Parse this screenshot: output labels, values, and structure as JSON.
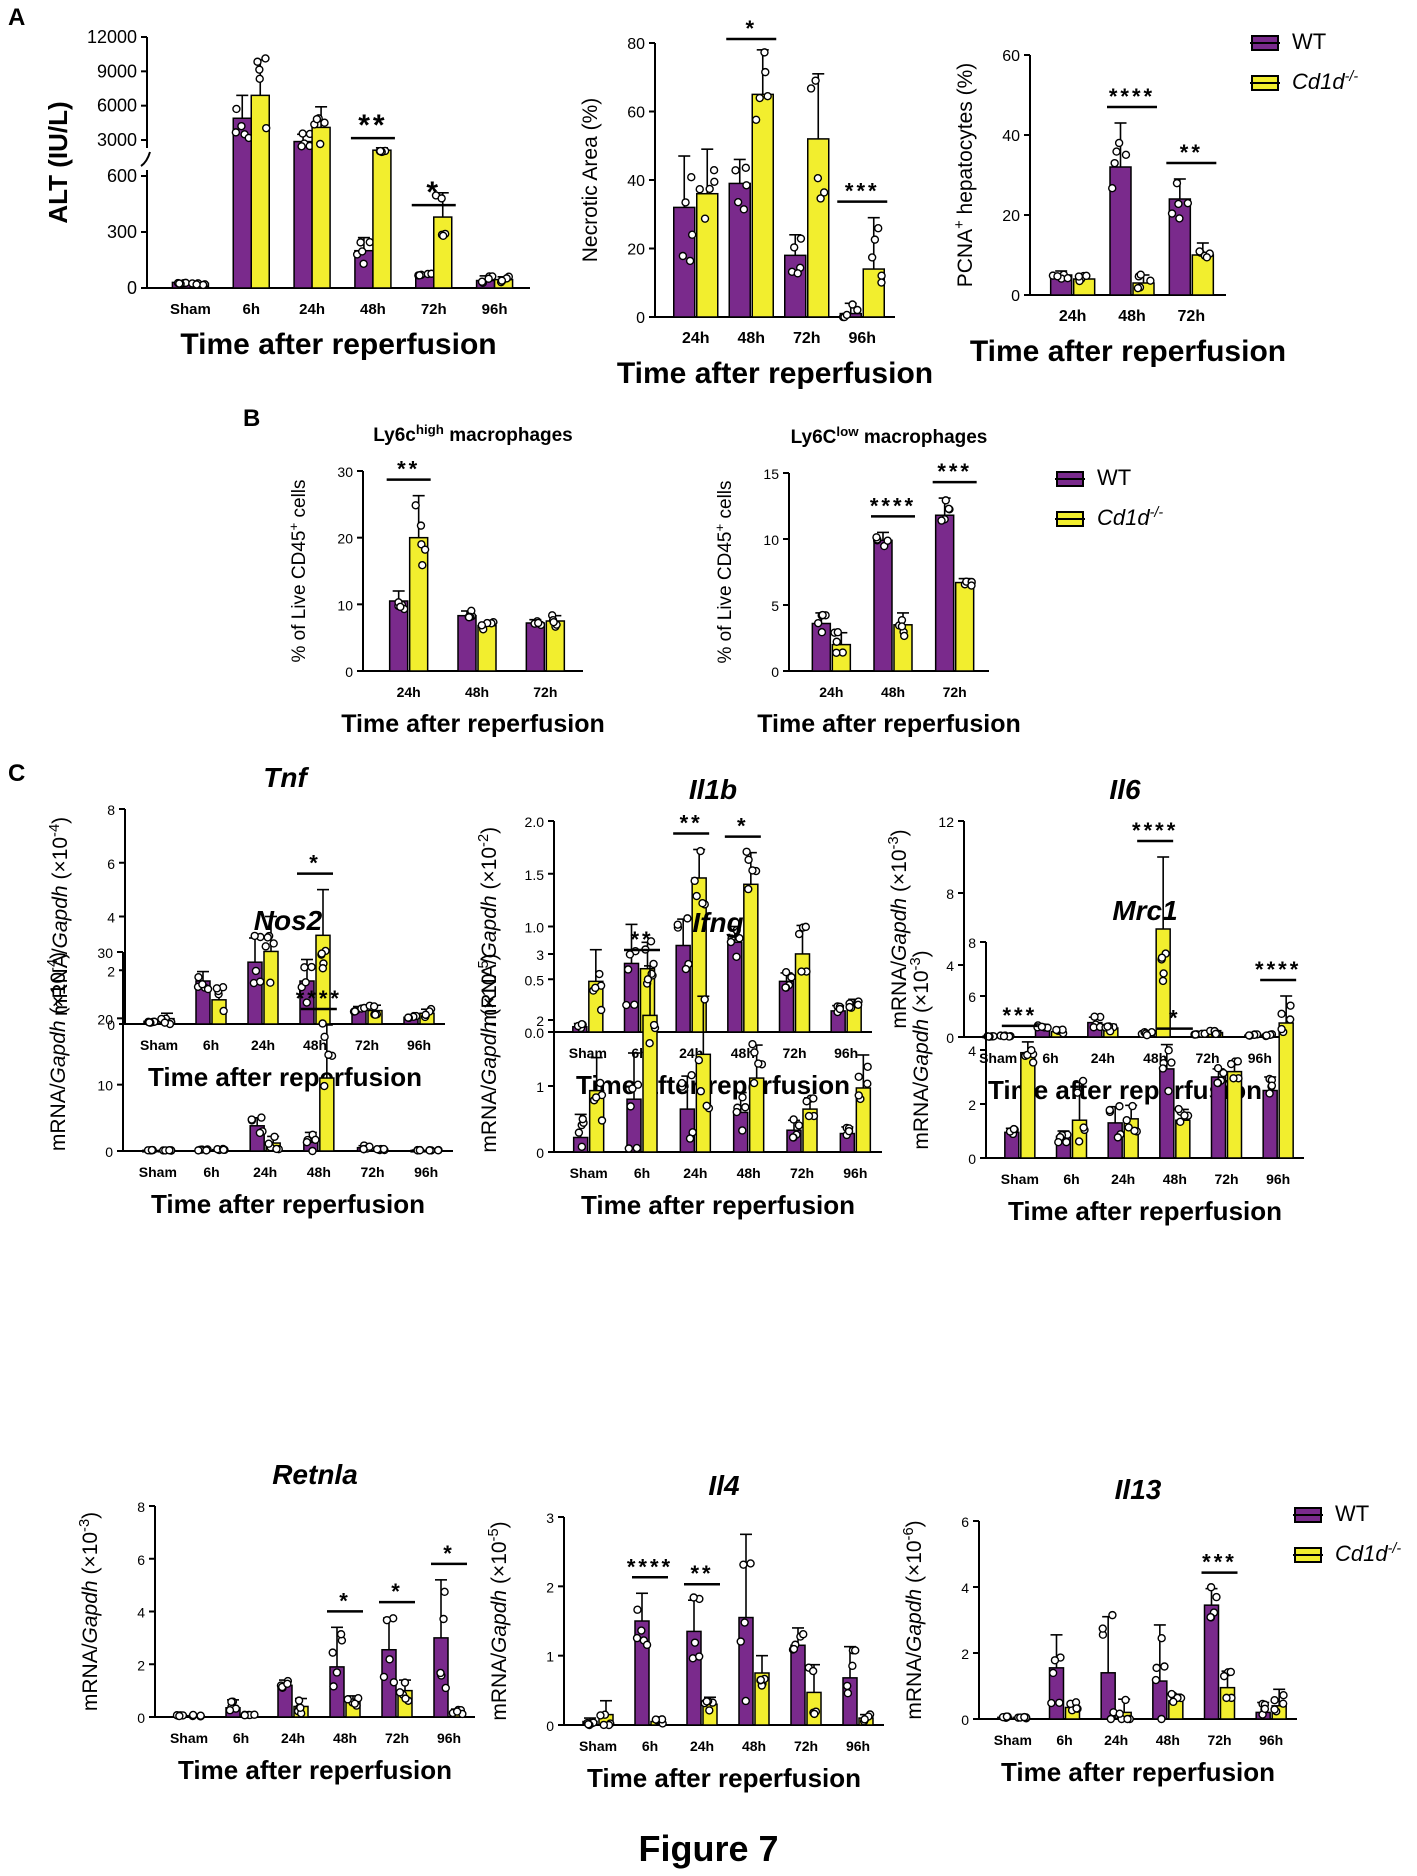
{
  "panel_labels": {
    "a": "A",
    "b": "B",
    "c": "C"
  },
  "figure_caption": "Figure 7",
  "legend": {
    "wt": "WT",
    "ko": "Cd1d",
    "ko_sup": "-/-"
  },
  "colors": {
    "wt": "#7a2a8c",
    "ko": "#f2ee2e",
    "edge": "#000000"
  },
  "chart_data": [
    {
      "id": "alt",
      "type": "bar",
      "title": "",
      "title_italic": false,
      "categories": [
        "Sham",
        "6h",
        "24h",
        "48h",
        "72h",
        "96h"
      ],
      "series": [
        {
          "name": "WT",
          "values": [
            30,
            4900,
            2800,
            200,
            70,
            40
          ],
          "errors": [
            8,
            2000,
            700,
            70,
            10,
            25
          ]
        },
        {
          "name": "Cd1d-/-",
          "values": [
            25,
            6900,
            4100,
            1700,
            380,
            45
          ],
          "errors": [
            8,
            3100,
            1800,
            300,
            130,
            15
          ]
        }
      ],
      "ylabel": "ALT (IU/L)",
      "xlabel": "Time after reperfusion",
      "axis_break": true,
      "lower_ticks": [
        "0",
        "300",
        "600"
      ],
      "upper_ticks": [
        "3000",
        "6000",
        "9000",
        "12000"
      ],
      "significance": [
        {
          "cat": 3,
          "label": "**"
        },
        {
          "cat": 4,
          "label": "*"
        }
      ]
    },
    {
      "id": "necrotic",
      "type": "bar",
      "title": "",
      "title_italic": false,
      "categories": [
        "24h",
        "48h",
        "72h",
        "96h"
      ],
      "series": [
        {
          "name": "WT",
          "values": [
            32,
            39,
            18,
            1
          ],
          "errors": [
            15,
            7,
            6,
            3
          ]
        },
        {
          "name": "Cd1d-/-",
          "values": [
            36,
            65,
            52,
            14
          ],
          "errors": [
            13,
            13,
            19,
            15
          ]
        }
      ],
      "ylabel": "Necrotic Area (%)",
      "xlabel": "Time after reperfusion",
      "ymax": 80,
      "ticks": [
        0,
        20,
        40,
        60,
        80
      ],
      "significance": [
        {
          "cat": 1,
          "label": "*"
        },
        {
          "cat": 3,
          "label": "***"
        }
      ]
    },
    {
      "id": "pcna",
      "type": "bar",
      "title": "",
      "title_italic": false,
      "categories": [
        "24h",
        "48h",
        "72h"
      ],
      "series": [
        {
          "name": "WT",
          "values": [
            5,
            32,
            24
          ],
          "errors": [
            1,
            11,
            5
          ]
        },
        {
          "name": "Cd1d-/-",
          "values": [
            4,
            3,
            10
          ],
          "errors": [
            1,
            2,
            3
          ]
        }
      ],
      "ylabel": "PCNA+ hepatocytes (%)",
      "ylabel_main": "PCNA",
      "ylabel_sup": "+",
      "ylabel_rest": " hepatocytes (%)",
      "xlabel": "Time after reperfusion",
      "ymax": 60,
      "ticks": [
        0,
        20,
        40,
        60
      ],
      "significance": [
        {
          "cat": 1,
          "label": "****"
        },
        {
          "cat": 2,
          "label": "**"
        }
      ]
    },
    {
      "id": "ly6chigh",
      "type": "bar",
      "title": "Ly6c",
      "title_sup": "high",
      "title_rest": " macrophages",
      "title_italic": false,
      "categories": [
        "24h",
        "48h",
        "72h"
      ],
      "series": [
        {
          "name": "WT",
          "values": [
            10.5,
            8.3,
            7.2
          ],
          "errors": [
            1.5,
            0.7,
            0.5
          ]
        },
        {
          "name": "Cd1d-/-",
          "values": [
            20,
            6.8,
            7.5
          ],
          "errors": [
            6.3,
            0.5,
            0.8
          ]
        }
      ],
      "ylabel": "% of Live CD45+ cells",
      "ylabel_main": "% of Live CD45",
      "ylabel_sup": "+",
      "ylabel_rest": " cells",
      "xlabel": "Time after reperfusion",
      "ymax": 30,
      "ticks": [
        0,
        10,
        20,
        30
      ],
      "significance": [
        {
          "cat": 0,
          "label": "**"
        }
      ]
    },
    {
      "id": "ly6clow",
      "type": "bar",
      "title": "Ly6C",
      "title_sup": "low",
      "title_rest": " macrophages",
      "title_italic": false,
      "categories": [
        "24h",
        "48h",
        "72h"
      ],
      "series": [
        {
          "name": "WT",
          "values": [
            3.6,
            9.9,
            11.8
          ],
          "errors": [
            0.8,
            0.6,
            1.3
          ]
        },
        {
          "name": "Cd1d-/-",
          "values": [
            2,
            3.5,
            6.7
          ],
          "errors": [
            0.9,
            0.9,
            0.3
          ]
        }
      ],
      "ylabel": "% of Live CD45+ cells",
      "ylabel_main": "% of Live CD45",
      "ylabel_sup": "+",
      "ylabel_rest": " cells",
      "xlabel": "Time after reperfusion",
      "ymax": 15,
      "ticks": [
        0,
        5,
        10,
        15
      ],
      "significance": [
        {
          "cat": 1,
          "label": "****"
        },
        {
          "cat": 2,
          "label": "***"
        }
      ]
    },
    {
      "id": "tnf",
      "type": "bar",
      "title": "Tnf",
      "title_italic": true,
      "categories": [
        "Sham",
        "6h",
        "24h",
        "48h",
        "72h",
        "96h"
      ],
      "series": [
        {
          "name": "WT",
          "values": [
            0.1,
            1.6,
            2.3,
            1.6,
            0.5,
            0.25
          ],
          "errors": [
            0.05,
            0.35,
            0.9,
            0.8,
            0.15,
            0.05
          ]
        },
        {
          "name": "Cd1d-/-",
          "values": [
            0.2,
            0.9,
            2.7,
            3.3,
            0.5,
            0.4
          ],
          "errors": [
            0.2,
            0.45,
            1.3,
            1.7,
            0.2,
            0.15
          ]
        }
      ],
      "ylabel": "mRNA/Gapdh (×10-4)",
      "ylabel_exp": "-4",
      "xlabel": "Time after reperfusion",
      "ymax": 8,
      "ticks": [
        "0",
        "2",
        "4",
        "6",
        "8"
      ],
      "significance": [
        {
          "cat": 3,
          "label": "*"
        }
      ]
    },
    {
      "id": "il1b",
      "type": "bar",
      "title": "Il1b",
      "title_italic": true,
      "categories": [
        "Sham",
        "6h",
        "24h",
        "48h",
        "72h",
        "96h"
      ],
      "series": [
        {
          "name": "WT",
          "values": [
            0.05,
            0.65,
            0.82,
            0.85,
            0.48,
            0.2
          ],
          "errors": [
            0.03,
            0.37,
            0.25,
            0.15,
            0.08,
            0.05
          ]
        },
        {
          "name": "Cd1d-/-",
          "values": [
            0.48,
            0.6,
            1.46,
            1.4,
            0.74,
            0.25
          ],
          "errors": [
            0.3,
            0.25,
            0.27,
            0.3,
            0.27,
            0.06
          ]
        }
      ],
      "ylabel": "mRNA/Gapdh (×10-2)",
      "ylabel_exp": "-2",
      "xlabel": "Time after reperfusion",
      "ymax": 2,
      "ticks": [
        "0.0",
        "0.5",
        "1.0",
        "1.5",
        "2.0"
      ],
      "significance": [
        {
          "cat": 2,
          "label": "**"
        },
        {
          "cat": 3,
          "label": "*"
        }
      ]
    },
    {
      "id": "il6",
      "type": "bar",
      "title": "Il6",
      "title_italic": true,
      "categories": [
        "Sham",
        "6h",
        "24h",
        "48h",
        "72h",
        "96h"
      ],
      "series": [
        {
          "name": "WT",
          "values": [
            0.05,
            0.6,
            0.8,
            0.2,
            0.15,
            0.1
          ],
          "errors": [
            0.03,
            0.1,
            0.3,
            0.1,
            0.05,
            0.05
          ]
        },
        {
          "name": "Cd1d-/-",
          "values": [
            0.08,
            0.3,
            0.5,
            6,
            0.25,
            0.1
          ],
          "errors": [
            0.05,
            0.1,
            0.2,
            4,
            0.1,
            0.05
          ]
        }
      ],
      "ylabel": "mRNA/Gapdh (×10-3)",
      "ylabel_exp": "-3",
      "xlabel": "Time after reperfusion",
      "ymax": 12,
      "ticks": [
        "0",
        "4",
        "8",
        "12"
      ],
      "significance": [
        {
          "cat": 3,
          "label": "****"
        }
      ]
    },
    {
      "id": "nos2",
      "type": "bar",
      "title": "Nos2",
      "title_italic": true,
      "categories": [
        "Sham",
        "6h",
        "24h",
        "48h",
        "72h",
        "96h"
      ],
      "series": [
        {
          "name": "WT",
          "values": [
            0.1,
            0.2,
            3.8,
            1.3,
            0.5,
            0.1
          ],
          "errors": [
            0.05,
            0.1,
            1.2,
            1.5,
            0.3,
            0.05
          ]
        },
        {
          "name": "Cd1d-/-",
          "values": [
            0.1,
            0.2,
            1.2,
            11,
            0.2,
            0.1
          ],
          "errors": [
            0.05,
            0.1,
            1,
            8,
            0.1,
            0.05
          ]
        }
      ],
      "ylabel": "mRNA/Gapdh (×10-4)",
      "ylabel_exp": "-4",
      "xlabel": "Time after reperfusion",
      "ymax": 30,
      "ticks": [
        "0",
        "10",
        "20",
        "30"
      ],
      "significance": [
        {
          "cat": 3,
          "label": "****"
        }
      ]
    },
    {
      "id": "ifng",
      "type": "bar",
      "title": "Ifng",
      "title_italic": true,
      "categories": [
        "Sham",
        "6h",
        "24h",
        "48h",
        "72h",
        "96h"
      ],
      "series": [
        {
          "name": "WT",
          "values": [
            0.22,
            0.8,
            0.65,
            0.6,
            0.33,
            0.28
          ],
          "errors": [
            0.35,
            0.7,
            0.5,
            0.3,
            0.15,
            0.1
          ]
        },
        {
          "name": "Cd1d-/-",
          "values": [
            0.93,
            2.07,
            1.48,
            1.12,
            0.65,
            0.97
          ],
          "errors": [
            0.5,
            0.75,
            0.88,
            0.5,
            0.17,
            0.5
          ]
        }
      ],
      "ylabel": "mRNA/Gapdh (×10-5)",
      "ylabel_exp": "-5",
      "xlabel": "Time after reperfusion",
      "ymax": 3,
      "ticks": [
        "0",
        "1",
        "2",
        "3"
      ],
      "significance": [
        {
          "cat": 1,
          "label": "**"
        }
      ]
    },
    {
      "id": "mrc1",
      "type": "bar",
      "title": "Mrc1",
      "title_italic": true,
      "categories": [
        "Sham",
        "6h",
        "24h",
        "48h",
        "72h",
        "96h"
      ],
      "series": [
        {
          "name": "WT",
          "values": [
            0.95,
            0.8,
            1.3,
            3.3,
            3.0,
            2.5
          ],
          "errors": [
            0.15,
            0.2,
            0.6,
            0.9,
            0.3,
            0.5
          ]
        },
        {
          "name": "Cd1d-/-",
          "values": [
            3.9,
            1.4,
            1.45,
            1.4,
            3.2,
            5.0
          ],
          "errors": [
            0.4,
            1.4,
            0.5,
            0.4,
            0.4,
            1.0
          ]
        }
      ],
      "ylabel": "mRNA/Gapdh (×10-3)",
      "ylabel_exp": "-3",
      "xlabel": "Time after reperfusion",
      "ymax": 8,
      "ticks": [
        "0",
        "2",
        "4",
        "6",
        "8"
      ],
      "significance": [
        {
          "cat": 0,
          "label": "***"
        },
        {
          "cat": 3,
          "label": "*"
        },
        {
          "cat": 5,
          "label": "****"
        }
      ]
    },
    {
      "id": "retnla",
      "type": "bar",
      "title": "Retnla",
      "title_italic": true,
      "categories": [
        "Sham",
        "6h",
        "24h",
        "48h",
        "72h",
        "96h"
      ],
      "series": [
        {
          "name": "WT",
          "values": [
            0.05,
            0.35,
            1.2,
            1.9,
            2.55,
            3.0
          ],
          "errors": [
            0.03,
            0.3,
            0.2,
            1.5,
            1.2,
            2.2
          ]
        },
        {
          "name": "Cd1d-/-",
          "values": [
            0.05,
            0.1,
            0.4,
            0.6,
            1.0,
            0.2
          ],
          "errors": [
            0.03,
            0.05,
            0.3,
            0.2,
            0.4,
            0.1
          ]
        }
      ],
      "ylabel": "mRNA/Gapdh (×10-3)",
      "ylabel_exp": "-3",
      "xlabel": "Time after reperfusion",
      "ymax": 8,
      "ticks": [
        "0",
        "2",
        "4",
        "6",
        "8"
      ],
      "significance": [
        {
          "cat": 3,
          "label": "*"
        },
        {
          "cat": 4,
          "label": "*"
        },
        {
          "cat": 5,
          "label": "*"
        }
      ]
    },
    {
      "id": "il4",
      "type": "bar",
      "title": "Il4",
      "title_italic": true,
      "categories": [
        "Sham",
        "6h",
        "24h",
        "48h",
        "72h",
        "96h"
      ],
      "series": [
        {
          "name": "WT",
          "values": [
            0.05,
            1.5,
            1.35,
            1.55,
            1.15,
            0.68
          ],
          "errors": [
            0.05,
            0.4,
            0.45,
            1.2,
            0.25,
            0.45
          ]
        },
        {
          "name": "Cd1d-/-",
          "values": [
            0.15,
            0.05,
            0.3,
            0.75,
            0.47,
            0.1
          ],
          "errors": [
            0.2,
            0.03,
            0.1,
            0.25,
            0.4,
            0.05
          ]
        }
      ],
      "ylabel": "mRNA/Gapdh (×10-5)",
      "ylabel_exp": "-5",
      "xlabel": "Time after reperfusion",
      "ymax": 3,
      "ticks": [
        "0",
        "1",
        "2",
        "3"
      ],
      "significance": [
        {
          "cat": 1,
          "label": "****"
        },
        {
          "cat": 2,
          "label": "**"
        }
      ]
    },
    {
      "id": "il13",
      "type": "bar",
      "title": "Il13",
      "title_italic": true,
      "categories": [
        "Sham",
        "6h",
        "24h",
        "48h",
        "72h",
        "96h"
      ],
      "series": [
        {
          "name": "WT",
          "values": [
            0.05,
            1.55,
            1.4,
            1.15,
            3.45,
            0.2
          ],
          "errors": [
            0.03,
            1.0,
            1.7,
            1.7,
            0.5,
            0.3
          ]
        },
        {
          "name": "Cd1d-/-",
          "values": [
            0.05,
            0.35,
            0.2,
            0.55,
            0.95,
            0.4
          ],
          "errors": [
            0.03,
            0.15,
            0.4,
            0.2,
            0.5,
            0.5
          ]
        }
      ],
      "ylabel": "mRNA/Gapdh (×10-6)",
      "ylabel_exp": "-6",
      "xlabel": "Time after reperfusion",
      "ymax": 6,
      "ticks": [
        "0",
        "2",
        "4",
        "6"
      ],
      "significance": [
        {
          "cat": 4,
          "label": "***"
        }
      ]
    }
  ]
}
